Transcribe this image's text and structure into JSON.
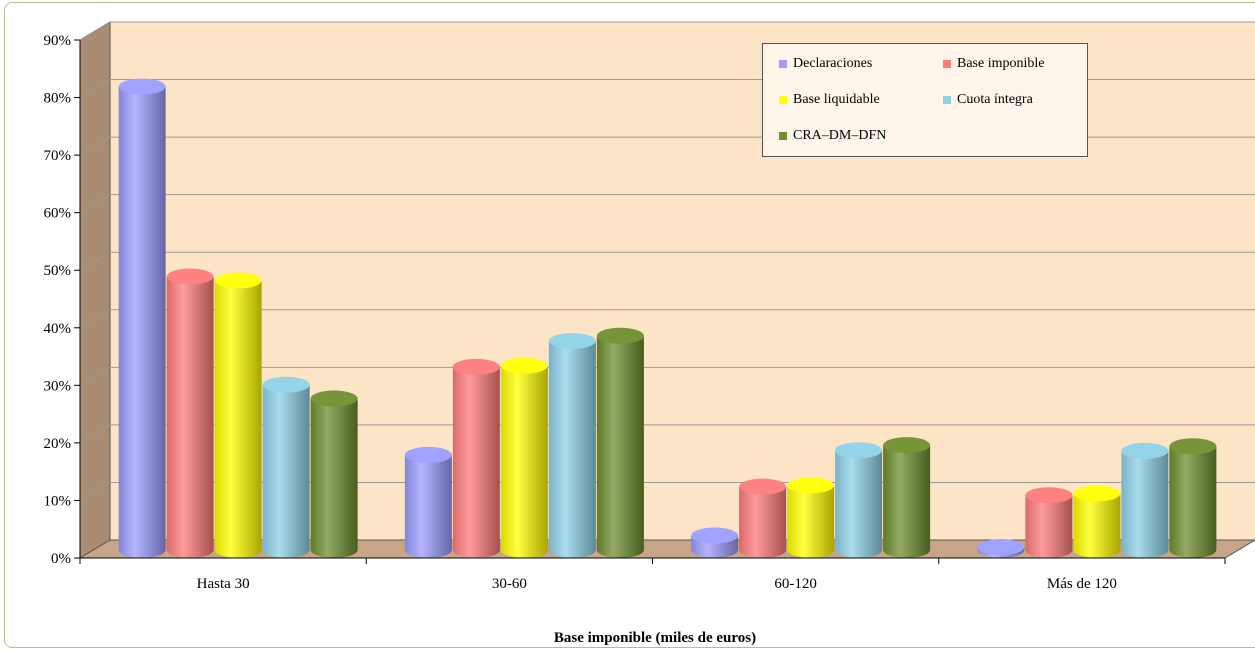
{
  "chart_data": {
    "type": "bar",
    "style": "3d-cylinder",
    "xlabel": "Base imponible (miles de euros)",
    "ylabel": "",
    "ylim": [
      0,
      90
    ],
    "yticks": [
      "0%",
      "10%",
      "20%",
      "30%",
      "40%",
      "50%",
      "60%",
      "70%",
      "80%",
      "90%"
    ],
    "categories": [
      "Hasta 30",
      "30-60",
      "60-120",
      "Más de 120"
    ],
    "series": [
      {
        "name": "Declaraciones",
        "color": "#9c9cff",
        "values": [
          80.5,
          16.5,
          2.5,
          0.5
        ]
      },
      {
        "name": "Base imponible",
        "color": "#ff7b7b",
        "values": [
          47.5,
          31.8,
          11.0,
          9.5
        ]
      },
      {
        "name": "Base liquidable",
        "color": "#ffff00",
        "values": [
          46.8,
          32.0,
          11.2,
          9.8
        ]
      },
      {
        "name": "Cuota íntegra",
        "color": "#8ed2e8",
        "values": [
          28.7,
          36.3,
          17.3,
          17.2
        ]
      },
      {
        "name": "CRA–DM–DFN",
        "color": "#6f8f2f",
        "values": [
          26.3,
          37.2,
          18.2,
          18.0
        ]
      }
    ],
    "grid": true,
    "legend_position": "top-right",
    "wall_color": "#fce4c6",
    "floor_color": "#c8a488"
  }
}
